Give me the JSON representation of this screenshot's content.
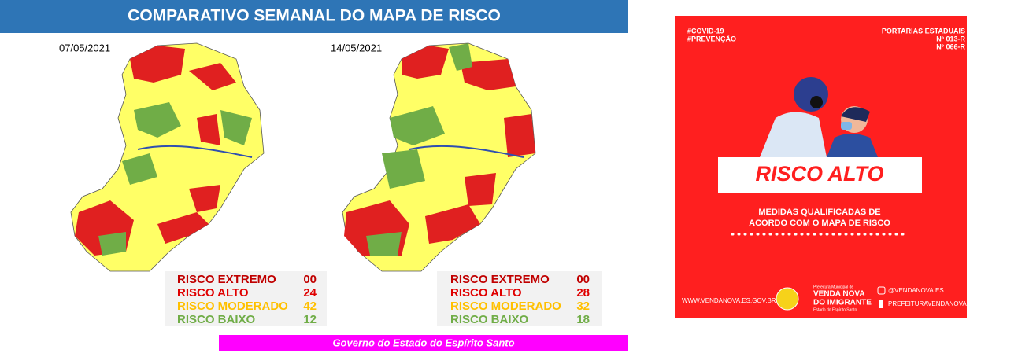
{
  "header": {
    "title": "COMPARATIVO SEMANAL DO MAPA DE RISCO"
  },
  "maps": [
    {
      "date": "07/05/2021",
      "legend": [
        {
          "label": "RISCO EXTREMO",
          "count": "00"
        },
        {
          "label": "RISCO ALTO",
          "count": "24"
        },
        {
          "label": "RISCO MODERADO",
          "count": "42"
        },
        {
          "label": "RISCO BAIXO",
          "count": "12"
        }
      ]
    },
    {
      "date": "14/05/2021",
      "legend": [
        {
          "label": "RISCO EXTREMO",
          "count": "00"
        },
        {
          "label": "RISCO ALTO",
          "count": "28"
        },
        {
          "label": "RISCO MODERADO",
          "count": "32"
        },
        {
          "label": "RISCO BAIXO",
          "count": "18"
        }
      ]
    }
  ],
  "footer": "Governo do Estado do Espírito Santo",
  "poster": {
    "tags": [
      "#COVID-19",
      "#PREVENÇÃO"
    ],
    "portarias": [
      "PORTARIAS ESTADUAIS",
      "Nº 013-R",
      "Nº 066-R"
    ],
    "banner": "RISCO ALTO",
    "message": [
      "MEDIDAS QUALIFICADAS DE",
      "ACORDO COM O MAPA DE RISCO"
    ],
    "website": "WWW.VENDANOVA.ES.GOV.BR",
    "logo": [
      "Prefeitura Municipal de",
      "VENDA NOVA",
      "DO IMIGRANTE",
      "Estado do Espírito Santo"
    ],
    "social": [
      "@VENDANOVA.ES",
      "PREFEITURAVENDANOVA"
    ]
  }
}
